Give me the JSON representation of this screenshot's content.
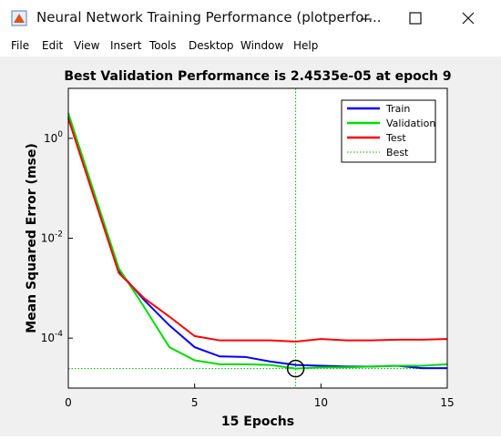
{
  "window": {
    "title": "Neural Network Training Performance (plotperfor...",
    "menu": [
      "File",
      "Edit",
      "View",
      "Insert",
      "Tools",
      "Desktop",
      "Window",
      "Help"
    ]
  },
  "chart_data": {
    "type": "line",
    "title": "Best Validation Performance is 2.4535e-05 at epoch 9",
    "x_label": "15 Epochs",
    "y_label": "Mean Squared Error  (mse)",
    "x": [
      0,
      1,
      2,
      3,
      4,
      5,
      6,
      7,
      8,
      9,
      10,
      11,
      12,
      13,
      14,
      15
    ],
    "xlim": [
      0,
      15
    ],
    "xticks": [
      0,
      5,
      10,
      15
    ],
    "ylim": [
      1e-05,
      10
    ],
    "y_scale": "log",
    "yticks": [
      {
        "value": 0.0001,
        "label": "10^-4"
      },
      {
        "value": 0.01,
        "label": "10^-2"
      },
      {
        "value": 1,
        "label": "10^0"
      }
    ],
    "series": [
      {
        "name": "Train",
        "color": "#0000ff",
        "values": [
          2.7,
          0.078,
          0.0022,
          0.00058,
          0.00018,
          6.6e-05,
          4.3e-05,
          4.2e-05,
          3.4e-05,
          2.9e-05,
          2.8e-05,
          2.7e-05,
          2.7e-05,
          2.8e-05,
          2.5e-05,
          2.5e-05
        ]
      },
      {
        "name": "Validation",
        "color": "#00dd00",
        "values": [
          3.2,
          0.088,
          0.0025,
          0.00042,
          6.6e-05,
          3.6e-05,
          3e-05,
          3e-05,
          2.9e-05,
          2.4535e-05,
          2.6e-05,
          2.6e-05,
          2.7e-05,
          2.8e-05,
          2.8e-05,
          3e-05
        ]
      },
      {
        "name": "Test",
        "color": "#ff0000",
        "values": [
          2.5,
          0.07,
          0.002,
          0.00063,
          0.00027,
          0.00011,
          9e-05,
          9e-05,
          9e-05,
          8.5e-05,
          9.6e-05,
          9e-05,
          9e-05,
          9.3e-05,
          9.3e-05,
          9.6e-05
        ]
      }
    ],
    "best": {
      "name": "Best",
      "color": "#00aa00",
      "x": 9,
      "y": 2.4535e-05
    },
    "legend": "upper right"
  }
}
